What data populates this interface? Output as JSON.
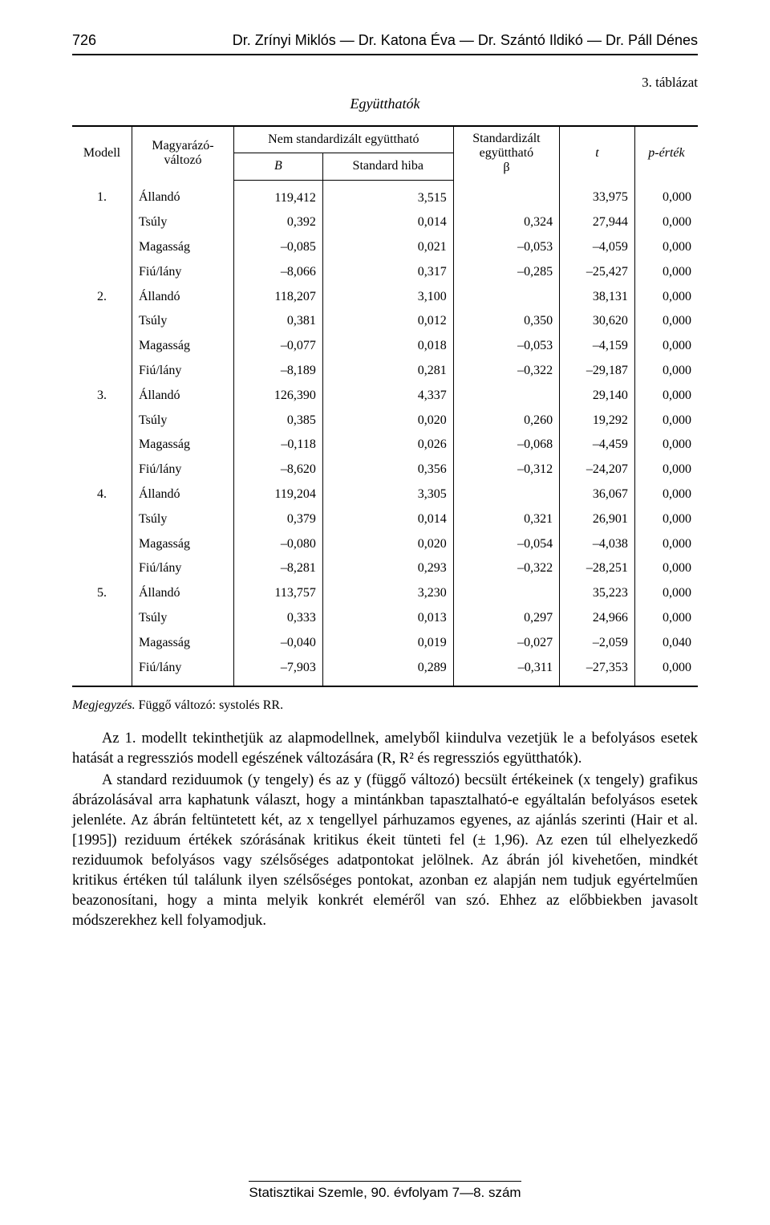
{
  "header": {
    "page_number": "726",
    "authors": "Dr. Zrínyi Miklós — Dr. Katona Éva — Dr. Szántó Ildikó — Dr. Páll Dénes"
  },
  "table": {
    "number_label": "3. táblázat",
    "caption": "Együtthatók",
    "head": {
      "model": "Modell",
      "explanatory": "Magyarázó-\nváltozó",
      "unstd_group": "Nem standardizált együttható",
      "unstd_B": "B",
      "unstd_se": "Standard hiba",
      "std_group": "Standardizált\negyüttható\nβ",
      "t": "t",
      "p": "p-érték"
    },
    "rows": [
      {
        "m": "1.",
        "v": "Állandó",
        "B": "119,412",
        "se": "3,515",
        "beta": "",
        "t": "33,975",
        "p": "0,000"
      },
      {
        "m": "",
        "v": "Tsúly",
        "B": "0,392",
        "se": "0,014",
        "beta": "0,324",
        "t": "27,944",
        "p": "0,000"
      },
      {
        "m": "",
        "v": "Magasság",
        "B": "–0,085",
        "se": "0,021",
        "beta": "–0,053",
        "t": "–4,059",
        "p": "0,000"
      },
      {
        "m": "",
        "v": "Fiú/lány",
        "B": "–8,066",
        "se": "0,317",
        "beta": "–0,285",
        "t": "–25,427",
        "p": "0,000"
      },
      {
        "m": "2.",
        "v": "Állandó",
        "B": "118,207",
        "se": "3,100",
        "beta": "",
        "t": "38,131",
        "p": "0,000"
      },
      {
        "m": "",
        "v": "Tsúly",
        "B": "0,381",
        "se": "0,012",
        "beta": "0,350",
        "t": "30,620",
        "p": "0,000"
      },
      {
        "m": "",
        "v": "Magasság",
        "B": "–0,077",
        "se": "0,018",
        "beta": "–0,053",
        "t": "–4,159",
        "p": "0,000"
      },
      {
        "m": "",
        "v": "Fiú/lány",
        "B": "–8,189",
        "se": "0,281",
        "beta": "–0,322",
        "t": "–29,187",
        "p": "0,000"
      },
      {
        "m": "3.",
        "v": "Állandó",
        "B": "126,390",
        "se": "4,337",
        "beta": "",
        "t": "29,140",
        "p": "0,000"
      },
      {
        "m": "",
        "v": "Tsúly",
        "B": "0,385",
        "se": "0,020",
        "beta": "0,260",
        "t": "19,292",
        "p": "0,000"
      },
      {
        "m": "",
        "v": "Magasság",
        "B": "–0,118",
        "se": "0,026",
        "beta": "–0,068",
        "t": "–4,459",
        "p": "0,000"
      },
      {
        "m": "",
        "v": "Fiú/lány",
        "B": "–8,620",
        "se": "0,356",
        "beta": "–0,312",
        "t": "–24,207",
        "p": "0,000"
      },
      {
        "m": "4.",
        "v": "Állandó",
        "B": "119,204",
        "se": "3,305",
        "beta": "",
        "t": "36,067",
        "p": "0,000"
      },
      {
        "m": "",
        "v": "Tsúly",
        "B": "0,379",
        "se": "0,014",
        "beta": "0,321",
        "t": "26,901",
        "p": "0,000"
      },
      {
        "m": "",
        "v": "Magasság",
        "B": "–0,080",
        "se": "0,020",
        "beta": "–0,054",
        "t": "–4,038",
        "p": "0,000"
      },
      {
        "m": "",
        "v": "Fiú/lány",
        "B": "–8,281",
        "se": "0,293",
        "beta": "–0,322",
        "t": "–28,251",
        "p": "0,000"
      },
      {
        "m": "5.",
        "v": "Állandó",
        "B": "113,757",
        "se": "3,230",
        "beta": "",
        "t": "35,223",
        "p": "0,000"
      },
      {
        "m": "",
        "v": "Tsúly",
        "B": "0,333",
        "se": "0,013",
        "beta": "0,297",
        "t": "24,966",
        "p": "0,000"
      },
      {
        "m": "",
        "v": "Magasság",
        "B": "–0,040",
        "se": "0,019",
        "beta": "–0,027",
        "t": "–2,059",
        "p": "0,040"
      },
      {
        "m": "",
        "v": "Fiú/lány",
        "B": "–7,903",
        "se": "0,289",
        "beta": "–0,311",
        "t": "–27,353",
        "p": "0,000"
      }
    ],
    "note_label": "Megjegyzés.",
    "note_text": " Függő változó: systolés RR."
  },
  "paragraphs": {
    "p1": "Az 1. modellt tekinthetjük az alapmodellnek, amelyből kiindulva vezetjük le a befolyásos esetek hatását a regressziós modell egészének változására (R, R² és regressziós együtthatók).",
    "p2": "A standard reziduumok (y tengely) és az y (függő változó) becsült értékeinek (x tengely) grafikus ábrázolásával arra kaphatunk választ, hogy a mintánkban tapasztalható-e egyáltalán befolyásos esetek jelenléte. Az ábrán feltüntetett két, az x tengellyel párhuzamos egyenes, az ajánlás szerinti (Hair et al. [1995]) reziduum értékek szórásának kritikus ékeit tünteti fel (± 1,96). Az ezen túl elhelyezkedő reziduumok befolyásos vagy szélsőséges adatpontokat jelölnek. Az ábrán jól kivehetően, mindkét kritikus értéken túl találunk ilyen szélsőséges pontokat, azonban ez alapján nem tudjuk egyértelműen beazonosítani, hogy a minta melyik konkrét eleméről van szó. Ehhez az előbbiekben javasolt módszerekhez kell folyamodjuk."
  },
  "footer": {
    "text": "Statisztikai Szemle, 90. évfolyam 7—8. szám"
  }
}
